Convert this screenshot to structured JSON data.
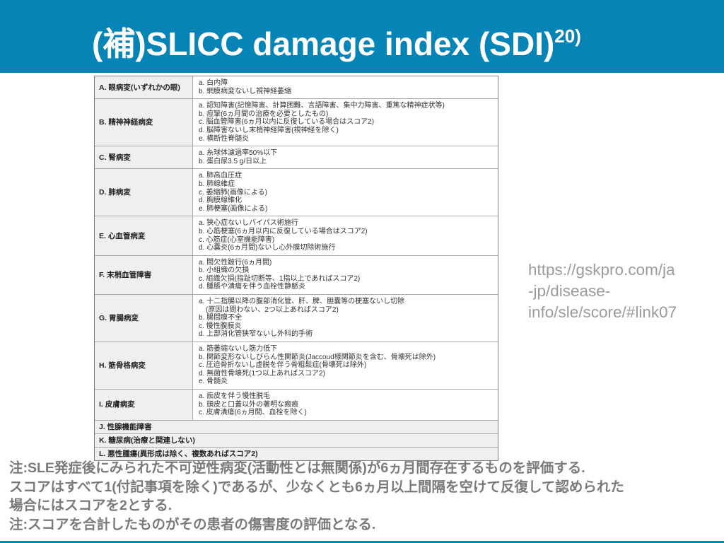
{
  "colors": {
    "accent_blue": "#0684b6",
    "cell_gray": "#efefef",
    "border_outer": "#7f7f7f",
    "border_inner": "#ababab",
    "url_gray": "#9b9b9b",
    "note_gray": "#7a7a7a"
  },
  "slide": {
    "title": "(補)SLICC damage index (SDI)",
    "title_superscript": "20)"
  },
  "table": {
    "rows": [
      {
        "label": "A. 眼病変(いずれかの眼)",
        "items": [
          "a. 白内障",
          "b. 網膜病変ないし視神経萎縮"
        ]
      },
      {
        "label": "B. 精神神経病変",
        "items": [
          "a. 認知障害(記憶障害、計算困難、言語障害、集中力障害、重篤な精神症状等)",
          "b. 痙攣(6ヵ月間の治療を必要としたもの)",
          "c. 脳血管障害(6ヵ月以内に反復している場合はスコア2)",
          "d. 脳障害ないし末梢神経障害(視神経を除く)",
          "e. 横断性脊髄炎"
        ]
      },
      {
        "label": "C. 腎病変",
        "items": [
          "a. 糸球体濾過率50%以下",
          "b. 蛋白尿3.5 g/日以上"
        ]
      },
      {
        "label": "D. 肺病変",
        "items": [
          "a. 肺高血圧症",
          "b. 肺線維症",
          "c. 萎縮肺(画像による)",
          "d. 胸膜線維化",
          "e. 肺梗塞(画像による)"
        ]
      },
      {
        "label": "E. 心血管病変",
        "items": [
          "a. 狭心症ないしバイパス術施行",
          "b. 心筋梗塞(6ヵ月以内に反復している場合はスコア2)",
          "c. 心筋症(心室機能障害)",
          "d. 心嚢炎(6ヵ月間)ないし心外膜切除術施行"
        ]
      },
      {
        "label": "F. 末梢血管障害",
        "items": [
          "a. 間欠性跛行(6ヵ月間)",
          "b. 小組織の欠損",
          "c. 組織欠損(指趾切断等、1指以上であればスコア2)",
          "d. 腫脹や潰瘍を伴う血栓性静脈炎"
        ]
      },
      {
        "label": "G. 胃腸病変",
        "items": [
          "a. 十二指腸以降の腹部消化管、肝、脾、胆嚢等の梗塞ないし切除\n　(原因は問わない、2つ以上あればスコア2)",
          "b. 腸間膜不全",
          "c. 慢性腹膜炎",
          "d. 上部消化管狭窄ないし外科的手術"
        ]
      },
      {
        "label": "H. 筋骨格病変",
        "items": [
          "a. 筋萎縮ないし筋力低下",
          "b. 関節変形ないしびらん性関節炎(Jaccoud様関節炎を含む、骨壊死は除外)",
          "c. 圧迫骨折ないし虚脱を伴う骨粗鬆症(骨壊死は除外)",
          "d. 無菌性骨壊死(1つ以上あればスコア2)",
          "e. 骨髄炎"
        ]
      },
      {
        "label": "I. 皮膚病変",
        "items": [
          "a. 痂皮を伴う慢性脱毛",
          "b. 頭皮と口蓋以外の著明な瘢痕",
          "c. 皮膚潰瘍(6ヵ月間、血栓を除く)"
        ]
      },
      {
        "label": "J. 性腺機能障害",
        "items": null
      },
      {
        "label": "K. 糖尿病(治療と関連しない)",
        "items": null
      },
      {
        "label": "L. 悪性腫瘍(異形成は除く、複数あればスコア2)",
        "items": null
      }
    ]
  },
  "reference": {
    "url_text": "https://gskpro.com/ja\n-jp/disease-\ninfo/sle/score/#link07"
  },
  "notes": {
    "text": "注:SLE発症後にみられた不可逆性病変(活動性とは無関係)が6ヵ月間存在するものを評価する.\nスコアはすべて1(付記事項を除く)であるが、少なくとも6ヵ月以上間隔を空けて反復して認められた\n場合にはスコアを2とする.\n注:スコアを合計したものがその患者の傷害度の評価となる."
  }
}
